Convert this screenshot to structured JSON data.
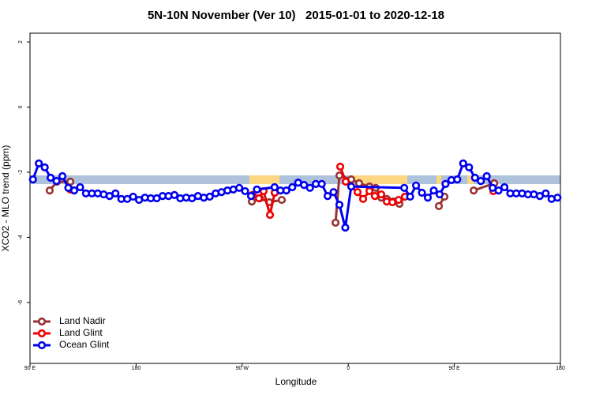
{
  "chart_data": {
    "type": "line",
    "title": "5N-10N November (Ver 10)   2015-01-01 to 2020-12-18",
    "xlabel": "Longitude",
    "ylabel": "XCO2 - MLO trend (ppm)",
    "xlim": [
      90,
      540
    ],
    "ylim": [
      -7.87,
      2.27
    ],
    "xticks": [
      {
        "value": 90,
        "label": "90 E"
      },
      180,
      {
        "value": 270,
        "label": "90 W"
      },
      {
        "value": 360,
        "label": "0"
      },
      {
        "value": 450,
        "label": "90 E"
      },
      {
        "value": 540,
        "label": "180"
      }
    ],
    "yticks": [
      2,
      0,
      -2,
      -4,
      -6
    ],
    "legend": "bottom-left",
    "series": [
      {
        "name": "Land Nadir",
        "color": "#993333",
        "x": [
          106.7,
          112.8,
          124.2,
          200,
          278.2,
          284.9,
          292.9,
          303.6,
          320,
          349.2,
          352.5,
          362.5,
          369.2,
          378,
          383.3,
          388,
          392.7,
          398,
          403.4,
          408.1,
          420,
          436.9,
          441.6,
          450,
          466.4,
          483.8
        ],
        "values": [
          -2.56,
          -2.29,
          -2.29,
          null,
          -2.9,
          -2.8,
          -2.92,
          -2.85,
          null,
          -3.55,
          -2.1,
          -2.22,
          -2.34,
          -2.44,
          -2.48,
          -2.78,
          -2.82,
          -2.9,
          -2.97,
          -2.75,
          null,
          -3.04,
          -2.75,
          null,
          -2.56,
          -2.34
        ]
      },
      {
        "name": "Land Glint",
        "color": "#ee0000",
        "x": [
          124.2,
          200,
          278.8,
          284.2,
          288.2,
          293.6,
          297.6,
          320,
          353.2,
          357.9,
          367.9,
          372.6,
          378,
          382.6,
          388,
          392.7,
          397.4,
          402.7,
          408.1,
          440,
          483.1
        ],
        "values": [
          -2.53,
          null,
          -2.7,
          -2.8,
          -2.58,
          -3.31,
          -2.63,
          null,
          -1.83,
          -2.29,
          -2.61,
          -2.82,
          -2.58,
          -2.73,
          -2.68,
          -2.9,
          -2.92,
          -2.85,
          -2.75,
          null,
          -2.58
        ]
      },
      {
        "name": "Ocean Glint",
        "color": "#0000ee",
        "x": [
          92.5,
          97.5,
          102.5,
          107.5,
          112.5,
          117.5,
          122.5,
          127.5,
          132.5,
          137.5,
          142.5,
          147.5,
          152.5,
          157.5,
          162.5,
          167.5,
          172.5,
          177.5,
          182.5,
          187.5,
          192.5,
          197.5,
          202.5,
          207.5,
          212.5,
          217.5,
          222.5,
          227.5,
          232.5,
          237.5,
          242.5,
          247.5,
          252.5,
          257.5,
          262.5,
          267.5,
          272.5,
          277.5,
          282.5,
          297.5,
          302.5,
          307.5,
          312.5,
          317.5,
          322.5,
          327.5,
          332.5,
          337.5,
          342.5,
          347.5,
          352.5,
          357.5,
          362.5,
          407.5,
          412.5,
          417.5,
          422.5,
          427.5,
          432.5,
          437.5,
          442.5,
          447.5,
          452.5,
          457.5,
          462.5,
          467.5,
          472.5,
          477.5,
          482.5,
          487.5,
          492.5,
          497.5,
          502.5,
          507.5,
          512.5,
          517.5,
          522.5,
          527.5,
          532.5,
          537.5
        ],
        "values": [
          -2.22,
          -1.73,
          -1.85,
          -2.17,
          -2.27,
          -2.12,
          -2.48,
          -2.56,
          -2.46,
          -2.65,
          -2.65,
          -2.65,
          -2.68,
          -2.73,
          -2.65,
          -2.82,
          -2.82,
          -2.75,
          -2.85,
          -2.78,
          -2.8,
          -2.8,
          -2.73,
          -2.73,
          -2.7,
          -2.8,
          -2.78,
          -2.8,
          -2.73,
          -2.78,
          -2.75,
          -2.65,
          -2.61,
          -2.56,
          -2.53,
          -2.48,
          -2.58,
          -2.73,
          -2.53,
          -2.46,
          -2.56,
          -2.56,
          -2.46,
          -2.32,
          -2.39,
          -2.48,
          -2.36,
          -2.36,
          -2.73,
          -2.61,
          -3.0,
          -3.7,
          -2.44,
          -2.48,
          -2.75,
          -2.41,
          -2.63,
          -2.78,
          -2.56,
          -2.68,
          -2.36,
          -2.24,
          -2.22,
          -1.73,
          -1.85,
          -2.17,
          -2.27,
          -2.12,
          -2.48,
          -2.56,
          -2.46,
          -2.65,
          -2.65,
          -2.65,
          -2.68,
          -2.68,
          -2.73,
          -2.65,
          -2.82,
          -2.78
        ]
      }
    ]
  }
}
